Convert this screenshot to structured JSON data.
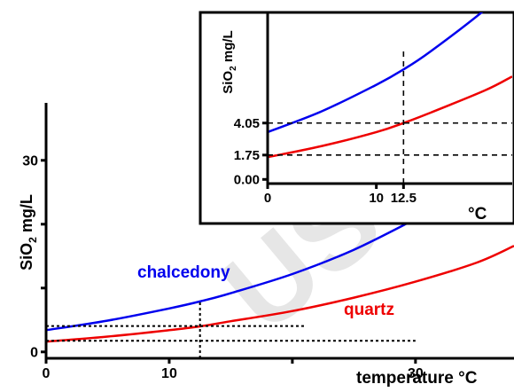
{
  "chart_data": [
    {
      "type": "line",
      "title": "",
      "xlabel": "temperature °C",
      "ylabel": "SiO2 mg/L",
      "ylabel_main": "SiO",
      "ylabel_sub": "2",
      "ylabel_rest": " mg/L",
      "xlim": [
        0,
        38
      ],
      "ylim": [
        -1,
        39
      ],
      "xticks": [
        0,
        10,
        20,
        30
      ],
      "xtick_labels": [
        "0",
        "10",
        "",
        "30"
      ],
      "yticks": [
        0,
        10,
        20,
        30
      ],
      "ytick_labels": [
        "0",
        "",
        "",
        "30"
      ],
      "series": [
        {
          "name": "chalcedony",
          "color": "#0000ee",
          "x": [
            0,
            5,
            10,
            12.5,
            15,
            20,
            25,
            30
          ],
          "y": [
            3.4,
            4.9,
            6.8,
            7.9,
            9.2,
            12.2,
            16.0,
            20.8
          ]
        },
        {
          "name": "quartz",
          "color": "#ee0000",
          "x": [
            0,
            5,
            10,
            12.5,
            15,
            20,
            25,
            30,
            35,
            38
          ],
          "y": [
            1.6,
            2.4,
            3.4,
            4.0,
            4.8,
            6.4,
            8.5,
            11.0,
            14.0,
            16.6
          ]
        }
      ],
      "reference_lines": [
        {
          "orientation": "vertical",
          "x": 12.5,
          "y_to": 7.9
        },
        {
          "orientation": "horizontal",
          "y": 4.05,
          "x_to": 21
        },
        {
          "orientation": "horizontal",
          "y": 1.75,
          "x_to": 30
        }
      ]
    },
    {
      "type": "line",
      "title": "",
      "xlabel": "°C",
      "ylabel": "SiO2 mg/L",
      "ylabel_main": "SiO",
      "ylabel_sub": "2",
      "ylabel_rest": " mg/L",
      "xlim": [
        0,
        22.5
      ],
      "ylim": [
        -0.3,
        12
      ],
      "xticks": [
        0,
        10,
        12.5
      ],
      "xtick_labels": [
        "0",
        "10",
        "12.5"
      ],
      "yticks": [
        0,
        1.75,
        4.05
      ],
      "ytick_labels": [
        "0.00",
        "1.75",
        "4.05"
      ],
      "series": [
        {
          "name": "chalcedony",
          "color": "#0000ee",
          "x": [
            0,
            5,
            10,
            12.5,
            15,
            20,
            22.5
          ],
          "y": [
            3.4,
            4.9,
            6.8,
            7.9,
            9.2,
            12.2,
            14.0
          ]
        },
        {
          "name": "quartz",
          "color": "#ee0000",
          "x": [
            0,
            5,
            10,
            12.5,
            15,
            20,
            22.5
          ],
          "y": [
            1.6,
            2.4,
            3.4,
            4.05,
            4.8,
            6.4,
            7.4
          ]
        }
      ],
      "reference_lines": [
        {
          "orientation": "vertical",
          "x": 12.5,
          "y_to": 9.5
        },
        {
          "orientation": "horizontal",
          "y": 4.05,
          "x_to": 22.5
        },
        {
          "orientation": "horizontal",
          "y": 1.75,
          "x_to": 22.5
        }
      ]
    }
  ],
  "labels": {
    "chalcedony": "chalcedony",
    "quartz": "quartz",
    "watermark": "USC"
  },
  "colors": {
    "chalcedony": "#0000ee",
    "quartz": "#ee0000",
    "axis": "#000000",
    "watermark": "#e6e6e6"
  }
}
